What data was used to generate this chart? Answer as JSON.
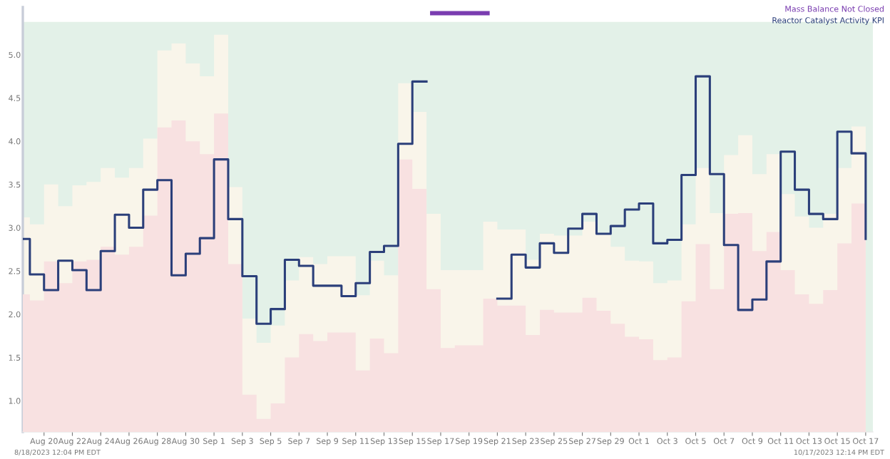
{
  "chart_data": {
    "type": "area",
    "x": [
      "2023-08-18T12:04",
      "2023-08-19",
      "2023-08-20",
      "2023-08-21",
      "2023-08-22",
      "2023-08-23",
      "2023-08-24",
      "2023-08-25",
      "2023-08-26",
      "2023-08-27",
      "2023-08-28",
      "2023-08-29",
      "2023-08-30",
      "2023-08-31",
      "2023-09-01",
      "2023-09-02",
      "2023-09-03",
      "2023-09-04",
      "2023-09-05",
      "2023-09-06",
      "2023-09-07",
      "2023-09-08",
      "2023-09-09",
      "2023-09-10",
      "2023-09-11",
      "2023-09-12",
      "2023-09-13",
      "2023-09-14",
      "2023-09-15",
      "2023-09-16",
      "2023-09-17",
      "2023-09-18",
      "2023-09-19",
      "2023-09-20",
      "2023-09-21",
      "2023-09-22",
      "2023-09-23",
      "2023-09-24",
      "2023-09-25",
      "2023-09-26",
      "2023-09-27",
      "2023-09-28",
      "2023-09-29",
      "2023-09-30",
      "2023-10-01",
      "2023-10-02",
      "2023-10-03",
      "2023-10-04",
      "2023-10-05",
      "2023-10-06",
      "2023-10-07",
      "2023-10-08",
      "2023-10-09",
      "2023-10-10",
      "2023-10-11",
      "2023-10-12",
      "2023-10-13",
      "2023-10-14",
      "2023-10-15",
      "2023-10-16",
      "2023-10-17"
    ],
    "series": [
      {
        "color": "#f9f5ea",
        "values": [
          3.12,
          3.04,
          3.5,
          3.25,
          3.49,
          3.53,
          3.69,
          3.58,
          3.69,
          4.03,
          5.05,
          5.13,
          4.9,
          4.75,
          5.23,
          3.47,
          1.95,
          1.67,
          1.87,
          2.39,
          2.66,
          2.58,
          2.67,
          2.67,
          2.22,
          2.62,
          2.45,
          4.67,
          4.34,
          3.16,
          2.51,
          2.51,
          2.51,
          3.07,
          2.98,
          2.98,
          2.63,
          2.93,
          2.91,
          2.91,
          3.07,
          2.94,
          2.78,
          2.62,
          2.61,
          2.36,
          2.39,
          3.04,
          3.69,
          3.17,
          3.84,
          4.07,
          3.62,
          3.85,
          3.39,
          3.13,
          3.0,
          3.16,
          3.69,
          4.17,
          3.13
        ]
      },
      {
        "color": "#f8e1e1",
        "values": [
          2.23,
          2.16,
          2.61,
          2.36,
          2.61,
          2.63,
          2.78,
          2.69,
          2.78,
          3.14,
          4.16,
          4.24,
          4.0,
          3.85,
          4.32,
          2.58,
          1.07,
          0.79,
          0.97,
          1.5,
          1.77,
          1.69,
          1.79,
          1.79,
          1.35,
          1.72,
          1.55,
          3.79,
          3.45,
          2.29,
          1.61,
          1.64,
          1.64,
          2.18,
          2.1,
          2.1,
          1.76,
          2.05,
          2.02,
          2.02,
          2.19,
          2.04,
          1.89,
          1.74,
          1.71,
          1.47,
          1.5,
          2.15,
          2.81,
          2.29,
          3.16,
          3.17,
          2.73,
          2.95,
          2.51,
          2.23,
          2.12,
          2.28,
          2.82,
          3.28,
          2.23
        ]
      },
      {
        "type": "step",
        "name": "Reactor Catalyst Activity KPI",
        "color": "#2b3f7a",
        "values": [
          2.87,
          2.46,
          2.28,
          2.62,
          2.51,
          2.28,
          2.73,
          3.15,
          3.0,
          3.44,
          3.55,
          2.45,
          2.7,
          2.88,
          3.79,
          3.1,
          2.44,
          1.89,
          2.06,
          2.63,
          2.56,
          2.33,
          2.33,
          2.21,
          2.36,
          2.72,
          2.79,
          3.97,
          4.69,
          null,
          null,
          null,
          null,
          null,
          2.18,
          2.69,
          2.54,
          2.82,
          2.71,
          2.99,
          3.16,
          2.93,
          3.02,
          3.21,
          3.28,
          2.82,
          2.86,
          3.61,
          4.75,
          3.62,
          2.8,
          2.05,
          2.17,
          2.61,
          3.88,
          3.44,
          3.16,
          3.1,
          4.11,
          3.86,
          2.87
        ]
      },
      {
        "type": "line",
        "name": "Mass Balance Not Closed",
        "color": "#7a3db0",
        "x": [
          "2023-09-16T06:00",
          "2023-09-20T11:00"
        ],
        "values": [
          5.48,
          5.48
        ]
      }
    ],
    "bands": [
      {
        "axis": "y",
        "from": 0.64,
        "to": 5.38,
        "color": "#e3f1e8"
      }
    ],
    "xlim": [
      "2023-08-18T12:04",
      "2023-10-17T12:14"
    ],
    "xticks": [
      {
        "value": "2023-08-20",
        "label": "Aug 20"
      },
      {
        "value": "2023-08-22",
        "label": "Aug 22"
      },
      {
        "value": "2023-08-24",
        "label": "Aug 24"
      },
      {
        "value": "2023-08-26",
        "label": "Aug 26"
      },
      {
        "value": "2023-08-28",
        "label": "Aug 28"
      },
      {
        "value": "2023-08-30",
        "label": "Aug 30"
      },
      {
        "value": "2023-09-01",
        "label": "Sep 1"
      },
      {
        "value": "2023-09-03",
        "label": "Sep 3"
      },
      {
        "value": "2023-09-05",
        "label": "Sep 5"
      },
      {
        "value": "2023-09-07",
        "label": "Sep 7"
      },
      {
        "value": "2023-09-09",
        "label": "Sep 9"
      },
      {
        "value": "2023-09-11",
        "label": "Sep 11"
      },
      {
        "value": "2023-09-13",
        "label": "Sep 13"
      },
      {
        "value": "2023-09-15",
        "label": "Sep 15"
      },
      {
        "value": "2023-09-17",
        "label": "Sep 17"
      },
      {
        "value": "2023-09-19",
        "label": "Sep 19"
      },
      {
        "value": "2023-09-21",
        "label": "Sep 21"
      },
      {
        "value": "2023-09-23",
        "label": "Sep 23"
      },
      {
        "value": "2023-09-25",
        "label": "Sep 25"
      },
      {
        "value": "2023-09-27",
        "label": "Sep 27"
      },
      {
        "value": "2023-09-29",
        "label": "Sep 29"
      },
      {
        "value": "2023-10-01",
        "label": "Oct 1"
      },
      {
        "value": "2023-10-03",
        "label": "Oct 3"
      },
      {
        "value": "2023-10-05",
        "label": "Oct 5"
      },
      {
        "value": "2023-10-07",
        "label": "Oct 7"
      },
      {
        "value": "2023-10-09",
        "label": "Oct 9"
      },
      {
        "value": "2023-10-11",
        "label": "Oct 11"
      },
      {
        "value": "2023-10-13",
        "label": "Oct 13"
      },
      {
        "value": "2023-10-15",
        "label": "Oct 15"
      },
      {
        "value": "2023-10-17",
        "label": "Oct 17"
      }
    ],
    "ylim": [
      0.64,
      5.55
    ],
    "yticks": [
      {
        "value": 1.0,
        "label": "1.0"
      },
      {
        "value": 1.5,
        "label": "1.5"
      },
      {
        "value": 2.0,
        "label": "2.0"
      },
      {
        "value": 2.5,
        "label": "2.5"
      },
      {
        "value": 3.0,
        "label": "3.0"
      },
      {
        "value": 3.5,
        "label": "3.5"
      },
      {
        "value": 4.0,
        "label": "4.0"
      },
      {
        "value": 4.5,
        "label": "4.5"
      },
      {
        "value": 5.0,
        "label": "5.0"
      }
    ],
    "annotations": [
      "8/18/2023 12:04 PM EDT",
      "10/17/2023 12:14 PM EDT"
    ],
    "legend": "top right",
    "grid": false
  }
}
